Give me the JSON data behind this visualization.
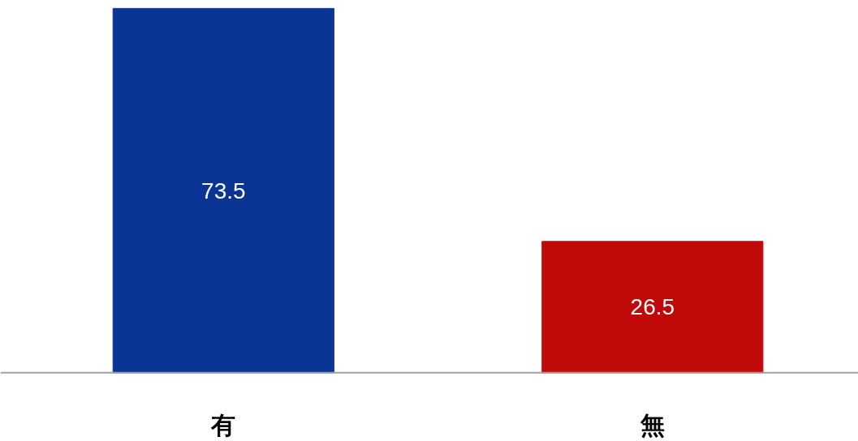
{
  "chart_data": {
    "type": "bar",
    "categories": [
      "有",
      "無"
    ],
    "values": [
      73.5,
      26.5
    ],
    "colors": [
      "#0a3594",
      "#c00a0a"
    ],
    "data_labels": true,
    "grid": false
  }
}
